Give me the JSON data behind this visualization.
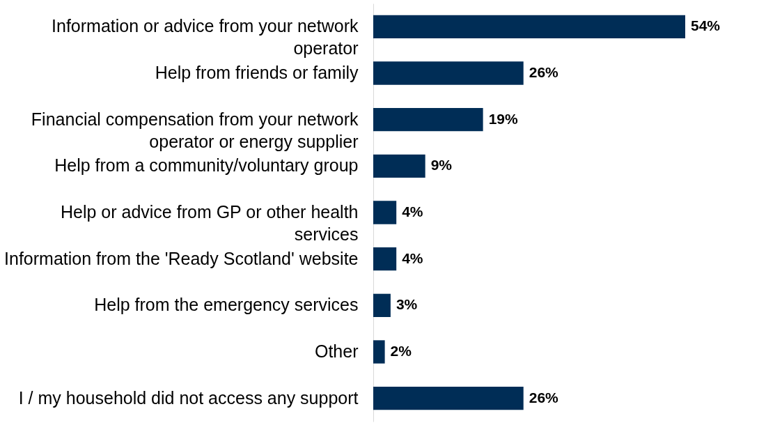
{
  "chart_data": {
    "type": "bar",
    "orientation": "horizontal",
    "categories": [
      "Information or advice from your network operator",
      "Help from friends or family",
      "Financial compensation from your network operator or energy supplier",
      "Help from a community/voluntary group",
      "Help or advice from GP or other health services",
      "Information from the 'Ready Scotland' website",
      "Help from the emergency services",
      "Other",
      "I / my household did not access any support"
    ],
    "values": [
      54,
      26,
      19,
      9,
      4,
      4,
      3,
      2,
      26
    ],
    "value_labels": [
      "54%",
      "26%",
      "19%",
      "9%",
      "4%",
      "4%",
      "3%",
      "2%",
      "26%"
    ],
    "color": "#002d56",
    "grid": false
  }
}
